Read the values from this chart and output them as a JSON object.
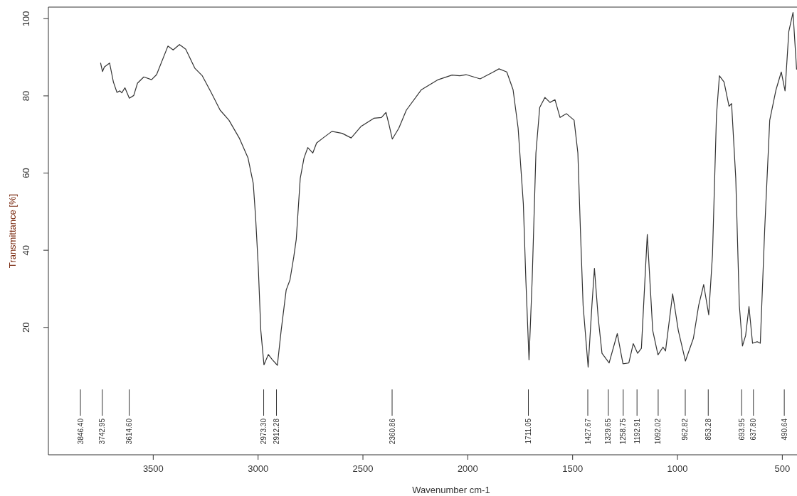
{
  "chart_data": {
    "type": "line",
    "xlabel": "Wavenumber cm-1",
    "ylabel": "Transmittance [%]",
    "xlim": [
      4000,
      430
    ],
    "ylim": [
      -13,
      103
    ],
    "xticks": [
      3500,
      3000,
      2500,
      2000,
      1500,
      1000,
      500
    ],
    "yticks": [
      20,
      40,
      60,
      80,
      100
    ],
    "grid": false,
    "marker": "none",
    "line_style": "solid",
    "series": [
      {
        "color": "#333333",
        "x": [
          3751,
          3742,
          3733,
          3708,
          3690,
          3673,
          3659,
          3650,
          3635,
          3614,
          3593,
          3575,
          3545,
          3508,
          3484,
          3430,
          3405,
          3375,
          3345,
          3302,
          3266,
          3224,
          3181,
          3139,
          3090,
          3048,
          3023,
          3012,
          2999,
          2987,
          2972,
          2951,
          2933,
          2908,
          2890,
          2866,
          2848,
          2830,
          2818,
          2799,
          2781,
          2763,
          2739,
          2721,
          2690,
          2648,
          2599,
          2556,
          2509,
          2448,
          2412,
          2390,
          2375,
          2360,
          2329,
          2293,
          2221,
          2141,
          2075,
          2038,
          2008,
          1941,
          1881,
          1851,
          1814,
          1784,
          1760,
          1735,
          1723,
          1708,
          1693,
          1675,
          1657,
          1632,
          1608,
          1584,
          1560,
          1530,
          1493,
          1475,
          1463,
          1450,
          1426,
          1408,
          1396,
          1378,
          1360,
          1326,
          1287,
          1260,
          1232,
          1211,
          1190,
          1172,
          1144,
          1118,
          1093,
          1069,
          1057,
          1023,
          996,
          962,
          924,
          899,
          875,
          851,
          833,
          814,
          800,
          778,
          754,
          742,
          722,
          705,
          690,
          675,
          659,
          642,
          620,
          605,
          584,
          560,
          530,
          505,
          487,
          469,
          449,
          432
        ],
        "values": [
          88.5,
          86.3,
          87.5,
          88.5,
          83.6,
          80.9,
          81.3,
          80.8,
          82.1,
          79.4,
          80.1,
          83.3,
          84.9,
          84.2,
          85.5,
          92.9,
          91.9,
          93.3,
          92.1,
          87.2,
          85.2,
          80.9,
          76.3,
          73.7,
          69.1,
          63.9,
          57.3,
          48.7,
          35.6,
          19.2,
          10.3,
          13.0,
          11.7,
          10.2,
          19.2,
          29.7,
          32.3,
          38.2,
          42.8,
          58.6,
          63.9,
          66.6,
          65.2,
          67.8,
          69.1,
          70.8,
          70.3,
          69.1,
          72.1,
          74.2,
          74.4,
          75.7,
          72.4,
          68.8,
          71.6,
          76.3,
          81.6,
          84.2,
          85.4,
          85.2,
          85.5,
          84.4,
          86.1,
          87.0,
          86.2,
          81.6,
          71.7,
          52.0,
          32.3,
          11.6,
          32.3,
          65.2,
          77.0,
          79.6,
          78.3,
          79.0,
          74.4,
          75.4,
          73.7,
          65.2,
          45.5,
          25.7,
          9.7,
          25.7,
          35.3,
          22.5,
          13.3,
          10.8,
          18.4,
          10.6,
          10.8,
          15.8,
          13.3,
          14.6,
          44.1,
          19.2,
          12.9,
          14.9,
          13.9,
          28.7,
          19.2,
          11.3,
          17.2,
          25.7,
          31.1,
          23.3,
          38.9,
          75.0,
          85.2,
          83.6,
          77.3,
          78.0,
          58.6,
          25.7,
          15.2,
          17.9,
          25.4,
          15.9,
          16.3,
          15.9,
          45.5,
          73.7,
          81.6,
          86.2,
          81.3,
          96.7,
          101.6,
          86.9
        ]
      }
    ],
    "annotations": [
      "3846.40",
      {
        "text": "3742.95",
        "x": 3742.95
      },
      {
        "text": "3614.60",
        "x": 3614.6
      },
      {
        "text": "2973.30",
        "x": 2973.3
      },
      {
        "text": "2912.28",
        "x": 2912.28
      },
      {
        "text": "2360.86",
        "x": 2360.86
      },
      {
        "text": "1711.05",
        "x": 1711.05
      },
      {
        "text": "1427.67",
        "x": 1427.67
      },
      {
        "text": "1329.65",
        "x": 1329.65
      },
      {
        "text": "1258.75",
        "x": 1258.75
      },
      {
        "text": "1192.91",
        "x": 1192.91
      },
      {
        "text": "1092.02",
        "x": 1092.02
      },
      {
        "text": "962.82",
        "x": 962.82
      },
      {
        "text": "853.28",
        "x": 853.28
      },
      {
        "text": "693.95",
        "x": 693.95
      },
      {
        "text": "637.80",
        "x": 637.8
      },
      {
        "text": "490.64",
        "x": 490.64
      }
    ]
  }
}
